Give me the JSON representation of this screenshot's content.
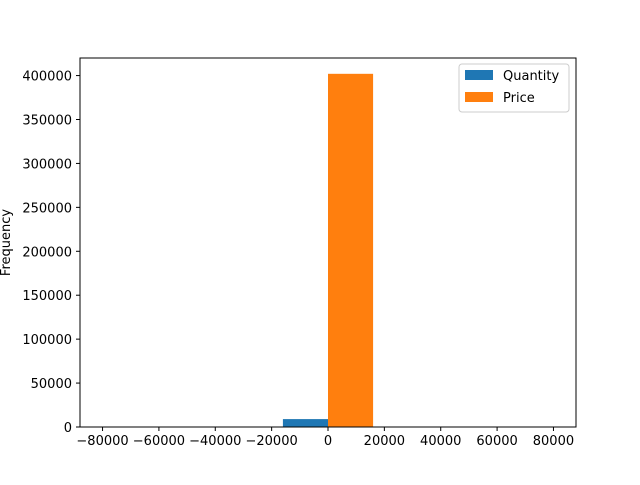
{
  "chart_data": {
    "type": "bar",
    "ylabel": "Frequency",
    "xlim": [
      -88000,
      88000
    ],
    "ylim": [
      0,
      420000
    ],
    "xticks": [
      -80000,
      -60000,
      -40000,
      -20000,
      0,
      20000,
      40000,
      60000,
      80000
    ],
    "xtick_labels": [
      "−80000",
      "−60000",
      "−40000",
      "−20000",
      "0",
      "20000",
      "40000",
      "60000",
      "80000"
    ],
    "yticks": [
      0,
      50000,
      100000,
      150000,
      200000,
      250000,
      300000,
      350000,
      400000
    ],
    "ytick_labels": [
      "0",
      "50000",
      "100000",
      "150000",
      "200000",
      "250000",
      "300000",
      "350000",
      "400000"
    ],
    "series": [
      {
        "name": "Quantity",
        "color": "#1f77b4",
        "bars": [
          {
            "x0": -16000,
            "x1": 0,
            "value": 9000
          }
        ]
      },
      {
        "name": "Price",
        "color": "#ff7f0e",
        "bars": [
          {
            "x0": 0,
            "x1": 16000,
            "value": 402000
          }
        ]
      }
    ],
    "legend": {
      "placement": "top-right"
    },
    "grid": false
  }
}
